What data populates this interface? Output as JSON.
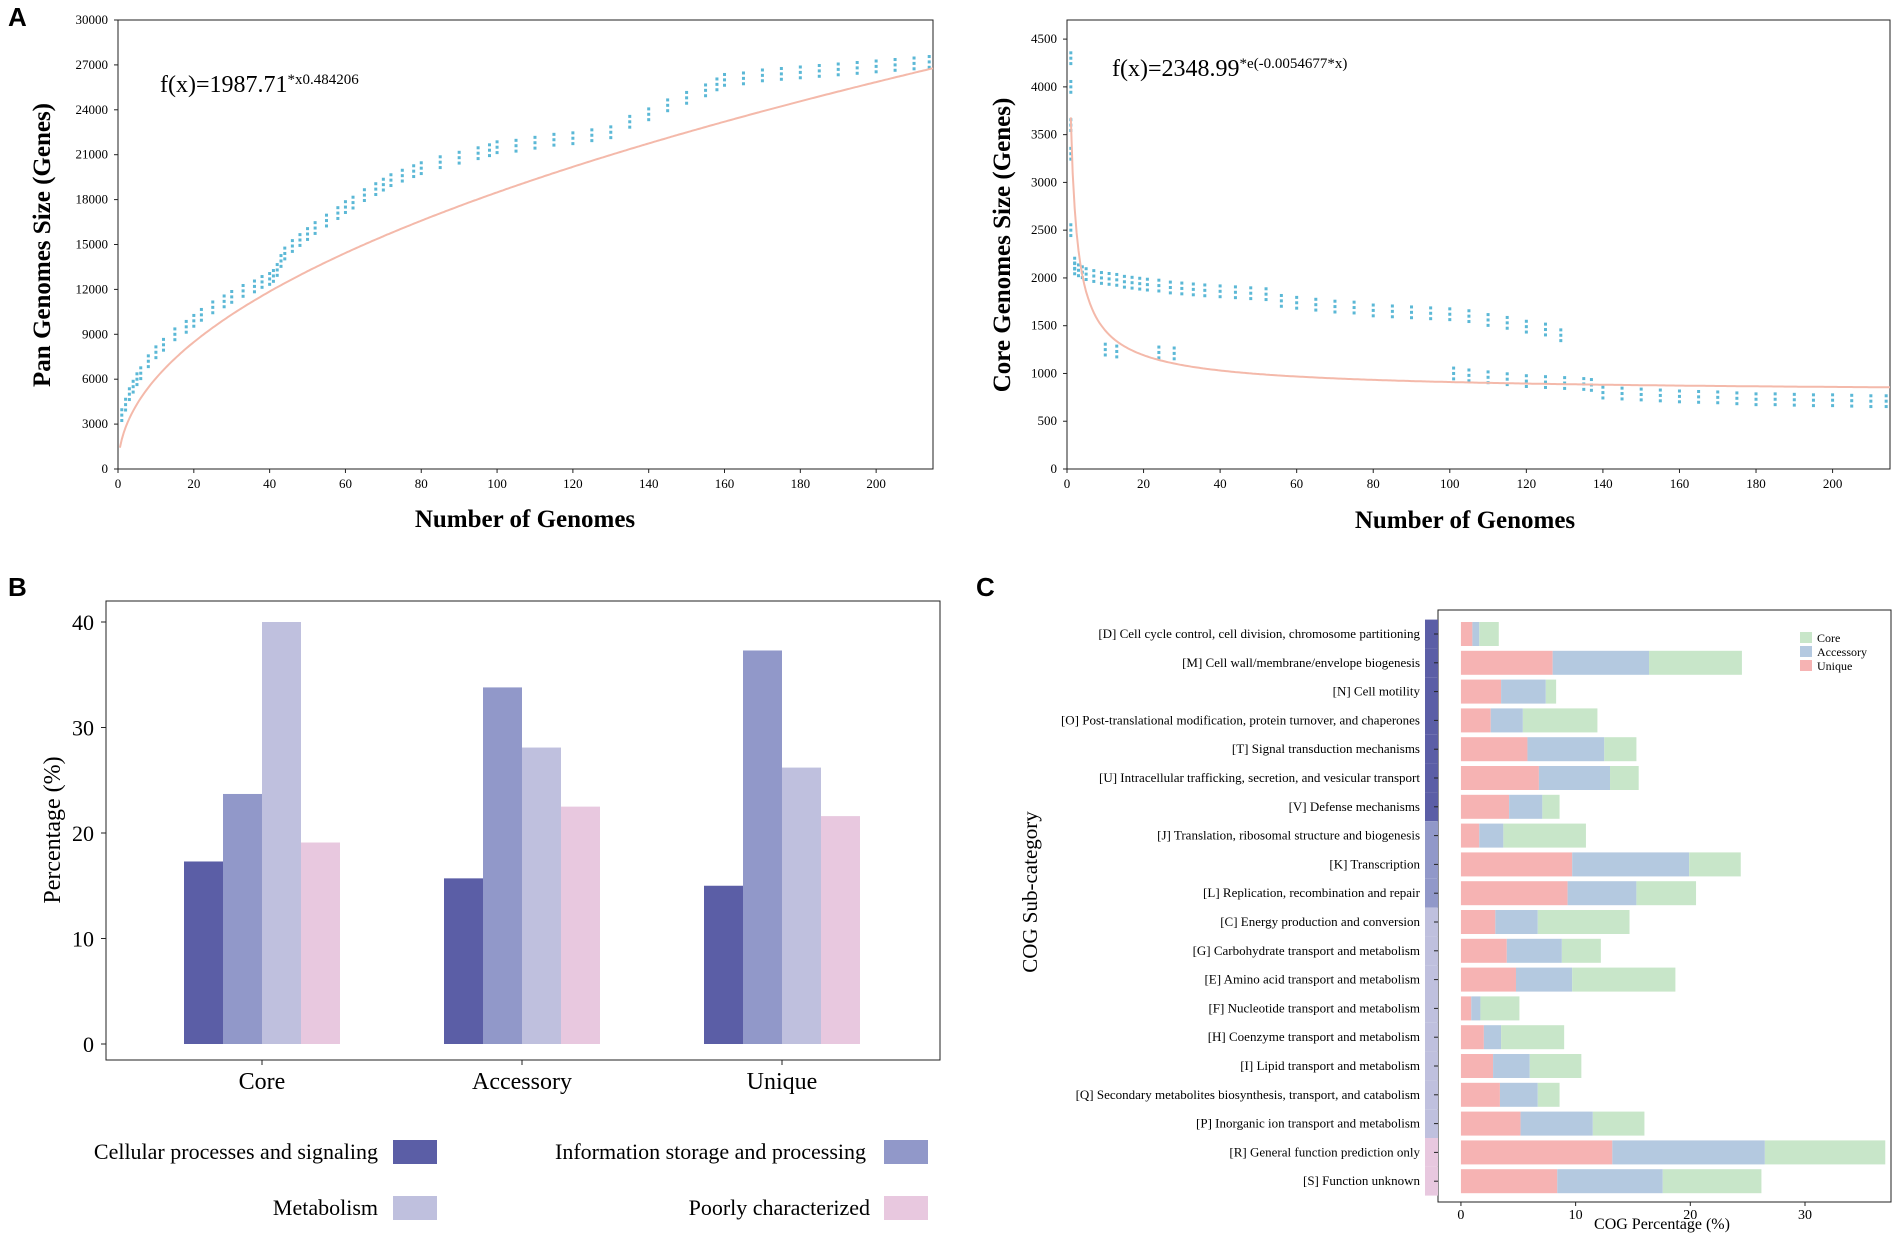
{
  "colors": {
    "scatter": "#5bb8d6",
    "fit": "#f4b9aa",
    "cellular": "#5b5ea6",
    "information": "#9198c9",
    "metabolism": "#bfc0de",
    "poorly": "#e8c8df",
    "core": "#c8e6c9",
    "accessory": "#b4c9e0",
    "unique": "#f6b3b3"
  },
  "chart_data": [
    {
      "id": "A-left",
      "panel_label": "A",
      "type": "scatter",
      "title": "",
      "formula": {
        "base": "f(x)=1987.71",
        "exp_prefix": "*x",
        "exponent": "0.484206"
      },
      "fit": {
        "kind": "power",
        "a": 1987.71,
        "b": 0.484206
      },
      "xlabel": "Number of Genomes",
      "ylabel": "Pan Genomes Size (Genes)",
      "xlim": [
        0,
        215
      ],
      "ylim": [
        0,
        30000
      ],
      "xticks": [
        "0",
        "20",
        "40",
        "60",
        "80",
        "100",
        "120",
        "140",
        "160",
        "180",
        "200"
      ],
      "yticks": [
        "0",
        "3000",
        "6000",
        "9000",
        "12000",
        "15000",
        "18000",
        "21000",
        "24000",
        "27000",
        "30000"
      ],
      "x": [
        1,
        2,
        3,
        4,
        5,
        6,
        8,
        10,
        12,
        15,
        18,
        20,
        22,
        25,
        28,
        30,
        33,
        36,
        38,
        40,
        41,
        42,
        43,
        44,
        46,
        48,
        50,
        52,
        55,
        58,
        60,
        62,
        65,
        68,
        70,
        72,
        75,
        78,
        80,
        85,
        90,
        95,
        98,
        100,
        105,
        110,
        115,
        120,
        125,
        130,
        135,
        140,
        145,
        150,
        155,
        158,
        160,
        165,
        170,
        175,
        180,
        185,
        190,
        195,
        200,
        205,
        210,
        214
      ],
      "y": [
        3600,
        4300,
        5000,
        5500,
        6000,
        6400,
        7200,
        7800,
        8300,
        9000,
        9500,
        9900,
        10300,
        10800,
        11200,
        11500,
        11900,
        12200,
        12500,
        12700,
        12900,
        13300,
        13900,
        14400,
        14900,
        15300,
        15700,
        16100,
        16600,
        17100,
        17500,
        17800,
        18300,
        18700,
        19000,
        19300,
        19600,
        19900,
        20100,
        20500,
        20800,
        21100,
        21300,
        21500,
        21600,
        21800,
        22000,
        22100,
        22300,
        22500,
        23200,
        23700,
        24300,
        24800,
        25300,
        25700,
        26000,
        26100,
        26300,
        26400,
        26500,
        26600,
        26700,
        26800,
        26900,
        27000,
        27100,
        27200
      ]
    },
    {
      "id": "A-right",
      "panel_label": "",
      "type": "scatter",
      "title": "",
      "formula": {
        "base": "f(x)=2348.99",
        "exp_prefix": "*e",
        "exponent": "(-0.0054677*x)"
      },
      "fit": {
        "kind": "expdecay"
      },
      "xlabel": "Number of Genomes",
      "ylabel": "Core Genomes Size (Genes)",
      "xlim": [
        0,
        215
      ],
      "ylim": [
        0,
        4700
      ],
      "xticks": [
        "0",
        "20",
        "40",
        "60",
        "80",
        "100",
        "120",
        "140",
        "160",
        "180",
        "200"
      ],
      "yticks": [
        "0",
        "500",
        "1000",
        "1500",
        "2000",
        "2500",
        "3000",
        "3500",
        "4000",
        "4500"
      ],
      "x": [
        1,
        1,
        1,
        1,
        1,
        2,
        2,
        3,
        4,
        5,
        7,
        9,
        11,
        13,
        15,
        17,
        19,
        21,
        24,
        27,
        30,
        33,
        36,
        40,
        44,
        48,
        52,
        56,
        60,
        65,
        70,
        75,
        80,
        85,
        90,
        95,
        100,
        105,
        110,
        115,
        120,
        125,
        129,
        101,
        105,
        110,
        115,
        120,
        125,
        130,
        135,
        137,
        140,
        145,
        150,
        155,
        160,
        165,
        170,
        175,
        180,
        185,
        190,
        195,
        200,
        205,
        210,
        214,
        10,
        13,
        24,
        28
      ],
      "y": [
        4300,
        4000,
        3600,
        3300,
        2500,
        2150,
        2100,
        2080,
        2060,
        2040,
        2020,
        2000,
        1990,
        1980,
        1960,
        1950,
        1940,
        1930,
        1920,
        1900,
        1890,
        1880,
        1870,
        1860,
        1850,
        1840,
        1830,
        1760,
        1740,
        1720,
        1700,
        1690,
        1660,
        1650,
        1640,
        1630,
        1620,
        1600,
        1560,
        1530,
        1490,
        1460,
        1400,
        1000,
        980,
        960,
        940,
        920,
        910,
        900,
        890,
        880,
        800,
        790,
        780,
        770,
        760,
        755,
        750,
        740,
        730,
        730,
        725,
        720,
        720,
        715,
        710,
        710,
        1250,
        1230,
        1220,
        1210
      ]
    },
    {
      "id": "B",
      "panel_label": "B",
      "type": "bar",
      "title": "",
      "categories": [
        "Core",
        "Accessory",
        "Unique"
      ],
      "series": [
        {
          "name": "Cellular processes and signaling",
          "values": [
            17.3,
            15.7,
            15.0
          ]
        },
        {
          "name": "Information storage and processing",
          "values": [
            23.7,
            33.8,
            37.3
          ]
        },
        {
          "name": "Metabolism",
          "values": [
            40.0,
            28.1,
            26.2
          ]
        },
        {
          "name": "Poorly characterized",
          "values": [
            19.1,
            22.5,
            21.6
          ]
        }
      ],
      "xlabel": "",
      "ylabel": "Percentage (%)",
      "ylim": [
        0,
        42
      ],
      "yticks": [
        "0",
        "10",
        "20",
        "30",
        "40"
      ],
      "legend_position": "bottom"
    },
    {
      "id": "C",
      "panel_label": "C",
      "type": "bar",
      "orientation": "horizontal-stacked",
      "title": "",
      "categories": [
        "[D] Cell cycle control, cell division, chromosome partitioning",
        "[M] Cell wall/membrane/envelope biogenesis",
        "[N] Cell motility",
        "[O] Post-translational modification, protein turnover, and chaperones",
        "[T] Signal transduction mechanisms",
        "[U] Intracellular trafficking, secretion, and vesicular transport",
        "[V] Defense mechanisms",
        "[J] Translation, ribosomal structure and biogenesis",
        "[K] Transcription",
        "[L] Replication, recombination and repair",
        "[C] Energy production and conversion",
        "[G] Carbohydrate transport and metabolism",
        "[E] Amino acid transport and metabolism",
        "[F] Nucleotide transport and metabolism",
        "[H] Coenzyme transport and metabolism",
        "[I] Lipid transport and metabolism",
        "[Q] Secondary metabolites biosynthesis, transport, and catabolism",
        "[P] Inorganic ion transport and metabolism",
        "[R] General function prediction only",
        "[S] Function unknown"
      ],
      "groups": [
        "cellular",
        "cellular",
        "cellular",
        "cellular",
        "cellular",
        "cellular",
        "cellular",
        "information",
        "information",
        "information",
        "metabolism",
        "metabolism",
        "metabolism",
        "metabolism",
        "metabolism",
        "metabolism",
        "metabolism",
        "metabolism",
        "poorly",
        "poorly"
      ],
      "series": [
        {
          "name": "Unique",
          "values": [
            1.0,
            8.0,
            3.5,
            2.6,
            5.8,
            6.8,
            4.2,
            1.6,
            9.7,
            9.3,
            3.0,
            4.0,
            4.8,
            0.9,
            2.0,
            2.8,
            3.4,
            5.2,
            13.2,
            8.4
          ]
        },
        {
          "name": "Accessory",
          "values": [
            0.6,
            8.4,
            3.9,
            2.8,
            6.7,
            6.2,
            2.9,
            2.1,
            10.2,
            6.0,
            3.7,
            4.8,
            4.9,
            0.8,
            1.5,
            3.2,
            3.3,
            6.3,
            13.3,
            9.2
          ]
        },
        {
          "name": "Core",
          "values": [
            1.7,
            8.1,
            0.9,
            6.5,
            2.8,
            2.5,
            1.5,
            7.2,
            4.5,
            5.2,
            8.0,
            3.4,
            9.0,
            3.4,
            5.5,
            4.5,
            1.9,
            4.5,
            10.5,
            8.6
          ]
        }
      ],
      "xlabel": "COG Percentage (%)",
      "ylabel": "COG Sub-category",
      "xlim": [
        -2,
        37.5
      ],
      "xticks": [
        "0",
        "10",
        "20",
        "30"
      ],
      "legend_position": "top-right"
    }
  ],
  "legend_b": [
    "Cellular processes and signaling",
    "Information storage and processing",
    "Metabolism",
    "Poorly characterized"
  ],
  "legend_c": [
    "Core",
    "Accessory",
    "Unique"
  ]
}
